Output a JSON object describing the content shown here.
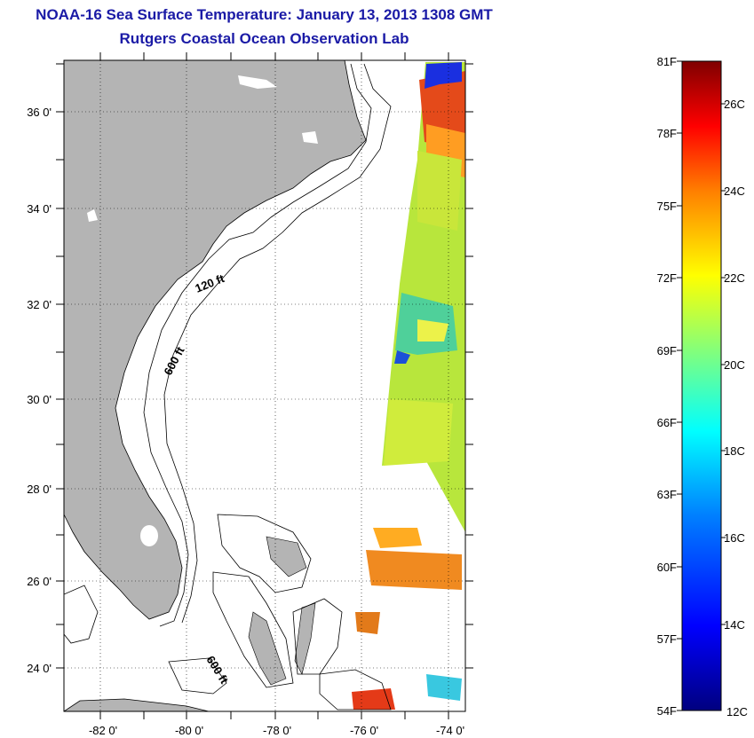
{
  "header": {
    "title": "NOAA-16 Sea Surface Temperature:  January 13, 2013 1308 GMT",
    "subtitle": "Rutgers Coastal Ocean Observation Lab"
  },
  "map": {
    "lat_labels": [
      "36 0'",
      "34 0'",
      "32 0'",
      "30 0'",
      "28 0'",
      "26 0'",
      "24 0'"
    ],
    "lon_labels": [
      "-82 0'",
      "-80 0'",
      "-78 0'",
      "-76 0'",
      "-74 0'"
    ],
    "lat_range": [
      23,
      37
    ],
    "lon_range": [
      -83,
      -73
    ],
    "land_color": "#b4b4b4",
    "grid": "dotted",
    "contours": [
      {
        "label": "120 ft"
      },
      {
        "label": "600 ft"
      },
      {
        "label": "600 ft"
      }
    ]
  },
  "colorbar": {
    "fahrenheit_labels": [
      "81F",
      "78F",
      "75F",
      "72F",
      "69F",
      "66F",
      "63F",
      "60F",
      "57F",
      "54F"
    ],
    "celsius_labels": [
      "26C",
      "24C",
      "22C",
      "20C",
      "18C",
      "16C",
      "14C",
      "12C"
    ],
    "range_c": [
      12,
      27
    ],
    "colormap": [
      "#00007f",
      "#0000ff",
      "#007fff",
      "#00ffff",
      "#7fff7f",
      "#ffff00",
      "#ff7f00",
      "#ff0000",
      "#7f0000"
    ]
  }
}
